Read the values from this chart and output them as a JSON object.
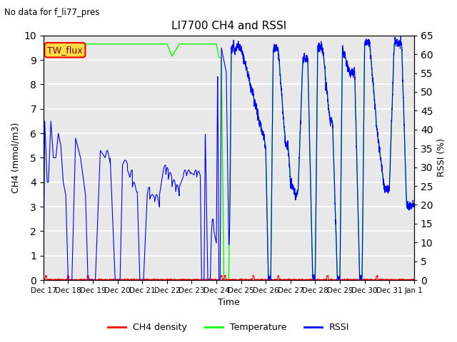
{
  "title": "LI7700 CH4 and RSSI",
  "top_annotation": "No data for f_li77_pres",
  "ylabel_left": "CH4 (mmol/m3)",
  "ylabel_right": "RSSI (%)",
  "xlabel": "Time",
  "ylim_left": [
    0.0,
    10.0
  ],
  "ylim_right": [
    0,
    65
  ],
  "yticks_left": [
    0.0,
    1.0,
    2.0,
    3.0,
    4.0,
    5.0,
    6.0,
    7.0,
    8.0,
    9.0,
    10.0
  ],
  "yticks_right_vals": [
    0,
    5,
    10,
    15,
    20,
    25,
    30,
    35,
    40,
    45,
    50,
    55,
    60,
    65
  ],
  "xtick_labels": [
    "Dec 17",
    "Dec 18",
    "Dec 19",
    "Dec 20",
    "Dec 21",
    "Dec 22",
    "Dec 23",
    "Dec 24",
    "Dec 25",
    "Dec 26",
    "Dec 27",
    "Dec 28",
    "Dec 29",
    "Dec 30",
    "Dec 31",
    "Jan 1"
  ],
  "tw_flux_box_color": "#ffdd44",
  "tw_flux_text": "TW_flux",
  "legend_labels": [
    "CH4 density",
    "Temperature",
    "RSSI"
  ],
  "bg_color": "#e8e8e8",
  "grid_color": "white",
  "total_days": 15.0,
  "n_points": 3000
}
